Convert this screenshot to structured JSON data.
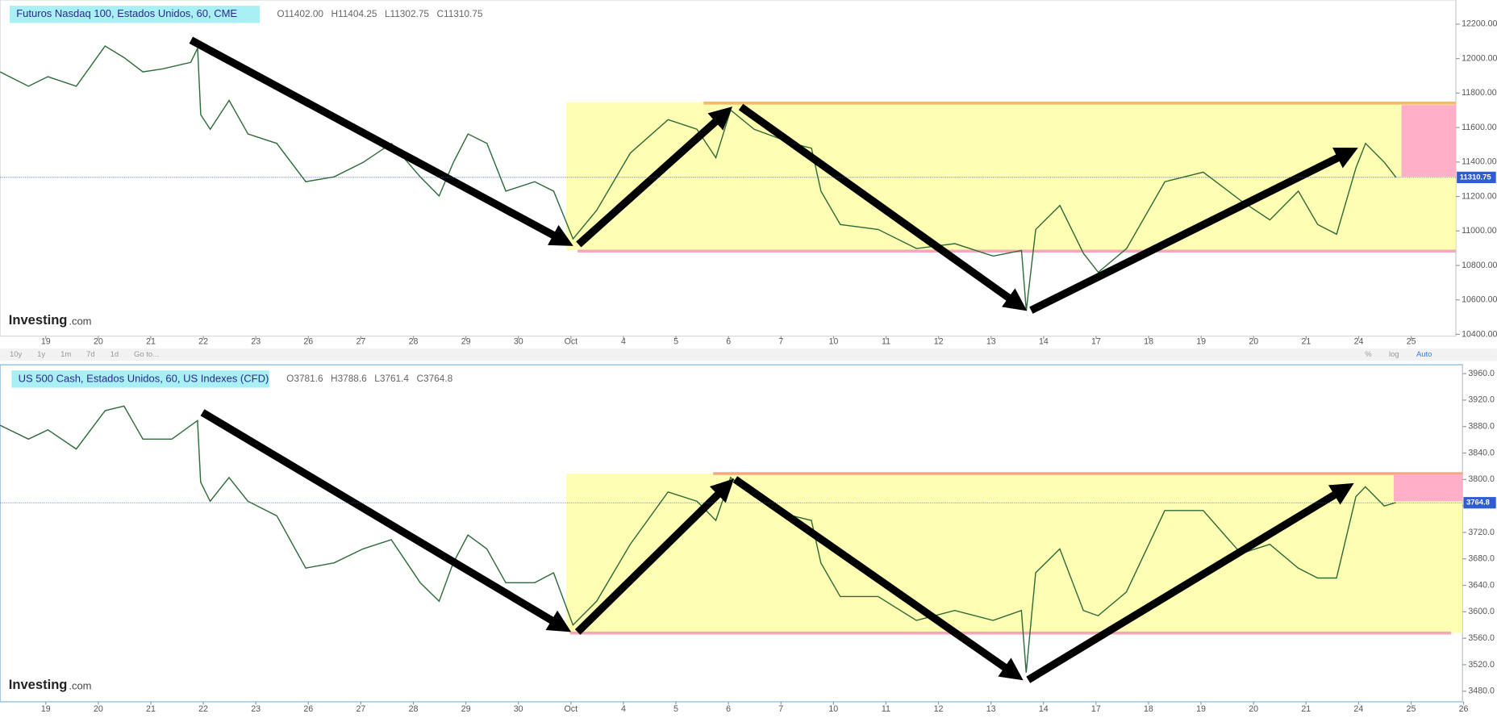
{
  "chart_data": [
    {
      "type": "line",
      "title": "Futuros Nasdaq 100, Estados Unidos, 60, CME",
      "ohlc": [
        "O11402.00",
        "H11404.25",
        "L11302.75",
        "C11310.75"
      ],
      "color": "#2f6b3a",
      "x": [
        -0.87,
        -0.33,
        0.04,
        0.58,
        1.13,
        1.49,
        1.85,
        2.22,
        2.76,
        2.89,
        2.95,
        3.13,
        3.49,
        3.85,
        4.4,
        4.95,
        5.49,
        6.04,
        6.58,
        7.13,
        7.49,
        7.76,
        8.04,
        8.4,
        8.76,
        9.31,
        9.67,
        10.04,
        10.49,
        11.13,
        11.85,
        12.4,
        12.76,
        13.04,
        13.49,
        14.22,
        14.58,
        14.76,
        15.13,
        15.85,
        16.58,
        17.31,
        18.04,
        18.58,
        18.67,
        18.85,
        19.31,
        19.76,
        20.04,
        20.58,
        21.31,
        22.04,
        22.76,
        23.31,
        23.85,
        24.22,
        24.58,
        24.95,
        25.13,
        25.49,
        25.71
      ],
      "values": [
        11923,
        11840,
        11895,
        11840,
        12073,
        12006,
        11923,
        11940,
        11978,
        12061,
        11674,
        11590,
        11757,
        11563,
        11508,
        11286,
        11314,
        11397,
        11508,
        11314,
        11203,
        11397,
        11563,
        11508,
        11231,
        11286,
        11231,
        10954,
        11120,
        11452,
        11646,
        11590,
        11425,
        11701,
        11590,
        11508,
        11480,
        11231,
        11037,
        11009,
        10898,
        10926,
        10854,
        10887,
        10538,
        11009,
        11148,
        10870,
        10760,
        10898,
        11286,
        11341,
        11175,
        11064,
        11231,
        11037,
        10981,
        11369,
        11508,
        11397,
        11311
      ],
      "xlim": [
        -0.87,
        26.85
      ],
      "xticks": [
        {
          "value": 0,
          "label": "19"
        },
        {
          "value": 1,
          "label": "20"
        },
        {
          "value": 2,
          "label": "21"
        },
        {
          "value": 3,
          "label": "22"
        },
        {
          "value": 4,
          "label": "23"
        },
        {
          "value": 5,
          "label": "26"
        },
        {
          "value": 6,
          "label": "27"
        },
        {
          "value": 7,
          "label": "28"
        },
        {
          "value": 8,
          "label": "29"
        },
        {
          "value": 9,
          "label": "30"
        },
        {
          "value": 10,
          "label": "Oct"
        },
        {
          "value": 11,
          "label": "4"
        },
        {
          "value": 12,
          "label": "5"
        },
        {
          "value": 13,
          "label": "6"
        },
        {
          "value": 14,
          "label": "7"
        },
        {
          "value": 15,
          "label": "10"
        },
        {
          "value": 16,
          "label": "11"
        },
        {
          "value": 17,
          "label": "12"
        },
        {
          "value": 18,
          "label": "13"
        },
        {
          "value": 19,
          "label": "14"
        },
        {
          "value": 20,
          "label": "17"
        },
        {
          "value": 21,
          "label": "18"
        },
        {
          "value": 22,
          "label": "19"
        },
        {
          "value": 23,
          "label": "20"
        },
        {
          "value": 24,
          "label": "21"
        },
        {
          "value": 25,
          "label": "24"
        },
        {
          "value": 26,
          "label": "25"
        }
      ],
      "ylim": [
        10390,
        12340
      ],
      "yticks": [
        {
          "value": 12200,
          "label": "12200.00"
        },
        {
          "value": 12000,
          "label": "12000.00"
        },
        {
          "value": 11800,
          "label": "11800.00"
        },
        {
          "value": 11600,
          "label": "11600.00"
        },
        {
          "value": 11400,
          "label": "11400.00"
        },
        {
          "value": 11200,
          "label": "11200.00"
        },
        {
          "value": 11000,
          "label": "11000.00"
        },
        {
          "value": 10800,
          "label": "10800.00"
        },
        {
          "value": 10600,
          "label": "10600.00"
        },
        {
          "value": 10400,
          "label": "10400.00"
        }
      ],
      "last_price": 11310.75
    },
    {
      "type": "line",
      "title": "US 500 Cash, Estados Unidos, 60, US Indexes (CFD)",
      "ohlc": [
        "O3781.6",
        "H3788.6",
        "L3761.4",
        "C3764.8"
      ],
      "color": "#2f6b3a",
      "x": [
        -0.87,
        -0.33,
        0.04,
        0.58,
        1.13,
        1.49,
        1.85,
        2.4,
        2.89,
        2.95,
        3.13,
        3.49,
        3.85,
        4.4,
        4.95,
        5.49,
        6.04,
        6.58,
        7.13,
        7.49,
        7.76,
        8.04,
        8.4,
        8.76,
        9.31,
        9.67,
        10.04,
        10.49,
        11.13,
        11.85,
        12.4,
        12.76,
        13.04,
        13.49,
        14.22,
        14.58,
        14.76,
        15.13,
        15.85,
        16.58,
        17.31,
        18.04,
        18.58,
        18.67,
        18.85,
        19.31,
        19.76,
        20.04,
        20.58,
        21.31,
        22.04,
        22.76,
        23.31,
        23.85,
        24.22,
        24.58,
        24.95,
        25.13,
        25.49,
        25.71
      ],
      "values": [
        3882,
        3861,
        3875,
        3846,
        3904,
        3911,
        3861,
        3861,
        3889,
        3796,
        3767,
        3803,
        3767,
        3745,
        3666,
        3674,
        3695,
        3709,
        3644,
        3616,
        3674,
        3716,
        3695,
        3644,
        3644,
        3659,
        3580,
        3616,
        3702,
        3781,
        3767,
        3738,
        3803,
        3774,
        3745,
        3738,
        3674,
        3623,
        3623,
        3587,
        3602,
        3587,
        3602,
        3508,
        3659,
        3695,
        3602,
        3594,
        3630,
        3753,
        3753,
        3688,
        3702,
        3666,
        3651,
        3651,
        3774,
        3789,
        3760,
        3765
      ],
      "xlim": [
        -0.87,
        26.98
      ],
      "xticks": [
        {
          "value": 0,
          "label": "19"
        },
        {
          "value": 1,
          "label": "20"
        },
        {
          "value": 2,
          "label": "21"
        },
        {
          "value": 3,
          "label": "22"
        },
        {
          "value": 4,
          "label": "23"
        },
        {
          "value": 5,
          "label": "26"
        },
        {
          "value": 6,
          "label": "27"
        },
        {
          "value": 7,
          "label": "28"
        },
        {
          "value": 8,
          "label": "29"
        },
        {
          "value": 9,
          "label": "30"
        },
        {
          "value": 10,
          "label": "Oct"
        },
        {
          "value": 11,
          "label": "4"
        },
        {
          "value": 12,
          "label": "5"
        },
        {
          "value": 13,
          "label": "6"
        },
        {
          "value": 14,
          "label": "7"
        },
        {
          "value": 15,
          "label": "10"
        },
        {
          "value": 16,
          "label": "11"
        },
        {
          "value": 17,
          "label": "12"
        },
        {
          "value": 18,
          "label": "13"
        },
        {
          "value": 19,
          "label": "14"
        },
        {
          "value": 20,
          "label": "17"
        },
        {
          "value": 21,
          "label": "18"
        },
        {
          "value": 22,
          "label": "19"
        },
        {
          "value": 23,
          "label": "20"
        },
        {
          "value": 24,
          "label": "21"
        },
        {
          "value": 25,
          "label": "24"
        },
        {
          "value": 26,
          "label": "25"
        },
        {
          "value": 27,
          "label": "26"
        }
      ],
      "ylim": [
        3464,
        3972
      ],
      "yticks": [
        {
          "value": 3960,
          "label": "3960.0"
        },
        {
          "value": 3920,
          "label": "3920.0"
        },
        {
          "value": 3880,
          "label": "3880.0"
        },
        {
          "value": 3840,
          "label": "3840.0"
        },
        {
          "value": 3800,
          "label": "3800.0"
        },
        {
          "value": 3760,
          "label": "3760.0"
        },
        {
          "value": 3720,
          "label": "3720.0"
        },
        {
          "value": 3680,
          "label": "3680.0"
        },
        {
          "value": 3640,
          "label": "3640.0"
        },
        {
          "value": 3600,
          "label": "3600.0"
        },
        {
          "value": 3560,
          "label": "3560.0"
        },
        {
          "value": 3520,
          "label": "3520.0"
        },
        {
          "value": 3480,
          "label": "3480.0"
        }
      ],
      "last_price": 3764.8
    }
  ],
  "logo": "Investing",
  "logo_suffix": ".com",
  "toolbar": {
    "ranges": [
      "10y",
      "1y",
      "1m",
      "7d",
      "1d",
      "Go to..."
    ],
    "options": [
      "%",
      "log",
      "Auto"
    ]
  }
}
